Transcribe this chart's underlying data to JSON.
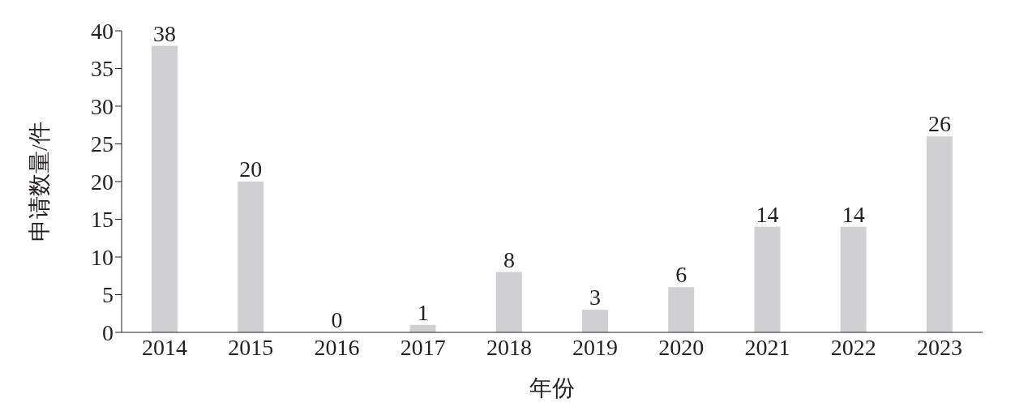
{
  "chart_data": {
    "type": "bar",
    "xlabel": "年份",
    "ylabel": "申请数量/件",
    "categories": [
      "2014",
      "2015",
      "2016",
      "2017",
      "2018",
      "2019",
      "2020",
      "2021",
      "2022",
      "2023"
    ],
    "values": [
      38,
      20,
      0,
      1,
      8,
      3,
      6,
      14,
      14,
      26
    ],
    "color": "#d0d0d2",
    "ylim": [
      0,
      40
    ],
    "yticks": [
      0,
      5,
      10,
      15,
      20,
      25,
      30,
      35,
      40
    ],
    "grid": false,
    "data_labels": true
  }
}
